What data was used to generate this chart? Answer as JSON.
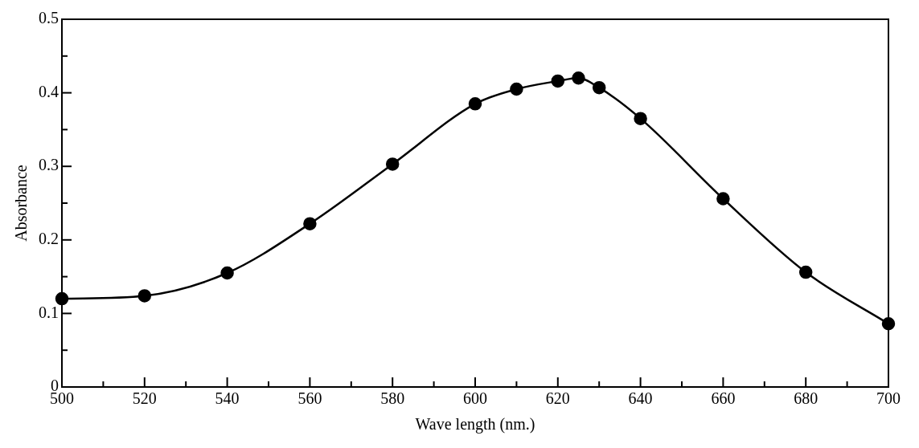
{
  "chart_data": {
    "type": "line",
    "xlabel": "Wave length (nm.)",
    "ylabel": "Absorbance",
    "x": [
      500,
      520,
      540,
      560,
      580,
      600,
      610,
      620,
      625,
      630,
      640,
      660,
      680,
      700
    ],
    "series": [
      {
        "color": "#000000",
        "values": [
          0.12,
          0.124,
          0.155,
          0.222,
          0.303,
          0.385,
          0.405,
          0.416,
          0.42,
          0.407,
          0.365,
          0.256,
          0.156,
          0.086
        ]
      }
    ],
    "xlim": [
      500,
      700
    ],
    "xticks": [
      500,
      {
        "value": 510,
        "label": null
      },
      520,
      {
        "value": 530,
        "label": null
      },
      540,
      {
        "value": 550,
        "label": null
      },
      560,
      {
        "value": 570,
        "label": null
      },
      580,
      {
        "value": 590,
        "label": null
      },
      600,
      {
        "value": 610,
        "label": null
      },
      620,
      {
        "value": 630,
        "label": null
      },
      640,
      {
        "value": 650,
        "label": null
      },
      660,
      {
        "value": 670,
        "label": null
      },
      680,
      {
        "value": 690,
        "label": null
      },
      700
    ],
    "ylim": [
      0,
      0.5
    ],
    "yticks": [
      0,
      {
        "value": 0.05,
        "label": null
      },
      0.1,
      {
        "value": 0.15,
        "label": null
      },
      0.2,
      {
        "value": 0.25,
        "label": null
      },
      0.3,
      {
        "value": 0.35,
        "label": null
      },
      0.4,
      {
        "value": 0.45,
        "label": null
      },
      0.5
    ],
    "marker": "circle",
    "line_style": "solid",
    "grid": false,
    "legend": false
  }
}
